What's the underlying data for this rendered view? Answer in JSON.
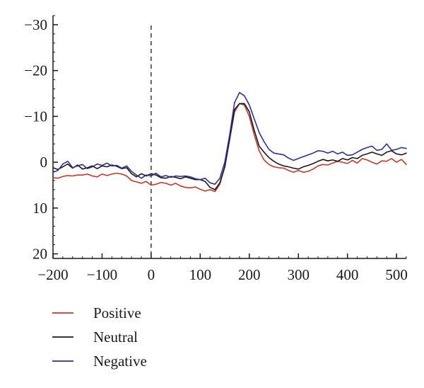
{
  "chart_data": {
    "type": "line",
    "title": "",
    "xlabel": "",
    "ylabel": "",
    "xlim": [
      -200,
      520
    ],
    "ylim": [
      -32,
      21
    ],
    "y_inverted": true,
    "grid": false,
    "legend_position": "bottom-left",
    "x_ticks": [
      {
        "value": -200,
        "label": "−200"
      },
      {
        "value": -100,
        "label": "−100"
      },
      {
        "value": 0,
        "label": "0"
      },
      {
        "value": 100,
        "label": "100"
      },
      {
        "value": 200,
        "label": "200"
      },
      {
        "value": 300,
        "label": "300"
      },
      {
        "value": 400,
        "label": "400"
      },
      {
        "value": 500,
        "label": "500"
      }
    ],
    "y_ticks": [
      {
        "value": -30,
        "label": "−30"
      },
      {
        "value": -20,
        "label": "−20"
      },
      {
        "value": -10,
        "label": "−10"
      },
      {
        "value": 0,
        "label": "0"
      },
      {
        "value": 10,
        "label": "10"
      },
      {
        "value": 20,
        "label": "20"
      }
    ],
    "stimulus_onset_x": 0,
    "x": [
      -200,
      -190,
      -180,
      -170,
      -160,
      -150,
      -140,
      -130,
      -120,
      -110,
      -100,
      -90,
      -80,
      -70,
      -60,
      -50,
      -40,
      -30,
      -20,
      -10,
      0,
      10,
      20,
      30,
      40,
      50,
      60,
      70,
      80,
      90,
      100,
      110,
      120,
      130,
      140,
      150,
      160,
      170,
      180,
      190,
      200,
      210,
      220,
      230,
      240,
      250,
      260,
      270,
      280,
      290,
      300,
      310,
      320,
      330,
      340,
      350,
      360,
      370,
      380,
      390,
      400,
      410,
      420,
      430,
      440,
      450,
      460,
      470,
      480,
      490,
      500,
      510,
      520
    ],
    "series": [
      {
        "name": "Positive",
        "color": "#c0392b",
        "values": [
          3.4,
          3.5,
          3.1,
          2.9,
          3.0,
          2.8,
          2.8,
          2.6,
          3.0,
          3.2,
          2.6,
          2.9,
          2.6,
          2.4,
          2.6,
          3.0,
          4.0,
          4.3,
          4.6,
          4.2,
          5.0,
          4.8,
          4.4,
          4.6,
          5.0,
          4.6,
          5.2,
          5.5,
          5.6,
          5.4,
          5.9,
          6.3,
          6.0,
          6.4,
          4.8,
          1.0,
          -5.0,
          -11.0,
          -12.8,
          -12.5,
          -10.0,
          -6.0,
          -2.5,
          -0.5,
          0.5,
          1.0,
          1.2,
          1.3,
          1.8,
          2.2,
          1.8,
          2.2,
          2.0,
          1.5,
          0.8,
          0.5,
          0.6,
          0.2,
          -0.2,
          0.0,
          0.3,
          -0.4,
          0.2,
          -0.8,
          -0.5,
          0.0,
          0.4,
          -0.3,
          -0.2,
          -0.8,
          0.0,
          -0.6,
          0.5
        ]
      },
      {
        "name": "Neutral",
        "color": "#1a1a1a",
        "values": [
          1.2,
          1.6,
          1.0,
          0.4,
          1.3,
          0.6,
          1.5,
          1.2,
          0.8,
          1.4,
          0.8,
          1.0,
          0.6,
          0.9,
          1.4,
          1.2,
          2.5,
          3.2,
          2.5,
          3.0,
          2.5,
          2.8,
          3.4,
          3.5,
          3.1,
          3.3,
          3.6,
          3.2,
          3.5,
          3.8,
          3.8,
          4.2,
          5.5,
          6.0,
          4.5,
          1.0,
          -5.0,
          -11.5,
          -12.8,
          -12.8,
          -11.0,
          -7.0,
          -3.5,
          -2.2,
          -1.0,
          -0.2,
          0.4,
          0.8,
          1.0,
          1.3,
          1.5,
          1.0,
          0.7,
          0.3,
          -0.2,
          -0.6,
          -0.3,
          -0.5,
          -0.2,
          -0.8,
          -0.5,
          -1.0,
          -0.8,
          -1.5,
          -1.8,
          -2.2,
          -1.8,
          -1.5,
          -2.2,
          -2.5,
          -1.8,
          -1.6,
          -2.0
        ]
      },
      {
        "name": "Negative",
        "color": "#2e3192",
        "values": [
          2.2,
          1.8,
          0.4,
          -0.2,
          1.2,
          0.8,
          0.5,
          1.4,
          1.0,
          0.4,
          0.7,
          0.2,
          0.8,
          0.7,
          1.3,
          0.8,
          2.0,
          2.8,
          3.5,
          2.8,
          3.0,
          2.4,
          3.2,
          2.9,
          3.3,
          3.0,
          3.1,
          3.0,
          3.2,
          3.6,
          3.8,
          3.5,
          4.5,
          4.8,
          3.5,
          0.0,
          -6.0,
          -13.0,
          -15.2,
          -14.5,
          -12.5,
          -9.5,
          -6.5,
          -4.5,
          -2.8,
          -2.0,
          -1.8,
          -1.6,
          -0.9,
          -0.4,
          -0.8,
          -1.2,
          -1.6,
          -2.0,
          -2.5,
          -2.4,
          -2.0,
          -2.4,
          -1.8,
          -2.2,
          -1.5,
          -1.6,
          -2.2,
          -2.8,
          -3.2,
          -3.5,
          -2.6,
          -2.8,
          -4.0,
          -2.6,
          -2.8,
          -3.2,
          -3.0
        ]
      }
    ]
  }
}
